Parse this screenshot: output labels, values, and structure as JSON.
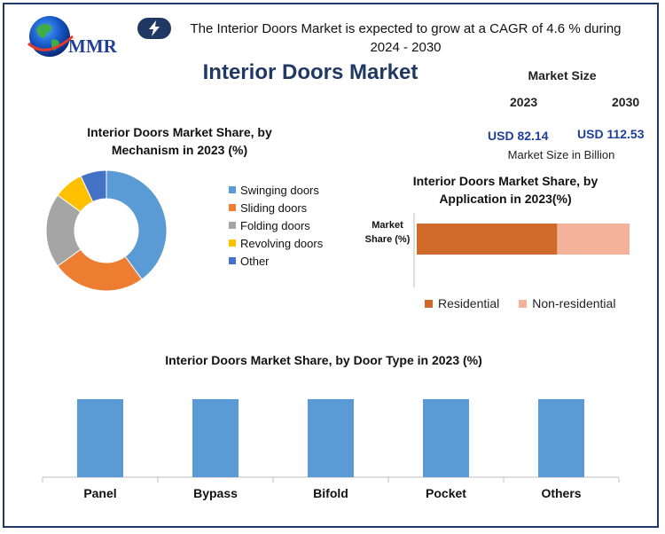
{
  "brand": {
    "logo_text": "MMR"
  },
  "headline": {
    "text": "The Interior Doors Market is expected to grow at a CAGR of 4.6 % during 2024 - 2030"
  },
  "title": "Interior Doors Market",
  "market_size": {
    "title": "Market Size",
    "year_2023": "2023",
    "year_2030": "2030",
    "value_2023": "USD 82.14",
    "value_2030": "USD 112.53",
    "note": "Market Size in Billion"
  },
  "colors": {
    "blue": "#5b9bd5",
    "orange": "#ed7d31",
    "gray": "#a5a5a5",
    "yellow": "#ffc000",
    "darkblue": "#4472c4",
    "residential": "#d06a2a",
    "non_residential": "#f4b29a",
    "navy": "#1f3864"
  },
  "chart_data": [
    {
      "type": "pie",
      "title": "Interior Doors Market Share, by Mechanism in 2023  (%)",
      "labels": [
        "Swinging doors",
        "Sliding doors",
        "Folding doors",
        "Revolving doors",
        "Other"
      ],
      "values": [
        40,
        25,
        20,
        8,
        7
      ]
    },
    {
      "type": "bar",
      "title": "Interior Doors Market Share, by Application in 2023(%)",
      "ylabel": "Market Share (%)",
      "categories": [
        "Market Share (%)"
      ],
      "series": [
        {
          "name": "Residential",
          "values": [
            66
          ]
        },
        {
          "name": "Non-residential",
          "values": [
            34
          ]
        }
      ],
      "stacked": true,
      "xlim": [
        0,
        100
      ]
    },
    {
      "type": "bar",
      "title": "Interior Doors Market Share, by Door Type in 2023  (%)",
      "categories": [
        "Panel",
        "Bypass",
        "Bifold",
        "Pocket",
        "Others"
      ],
      "values": [
        20,
        20,
        20,
        20,
        20
      ],
      "ylim": [
        0,
        20
      ]
    }
  ]
}
